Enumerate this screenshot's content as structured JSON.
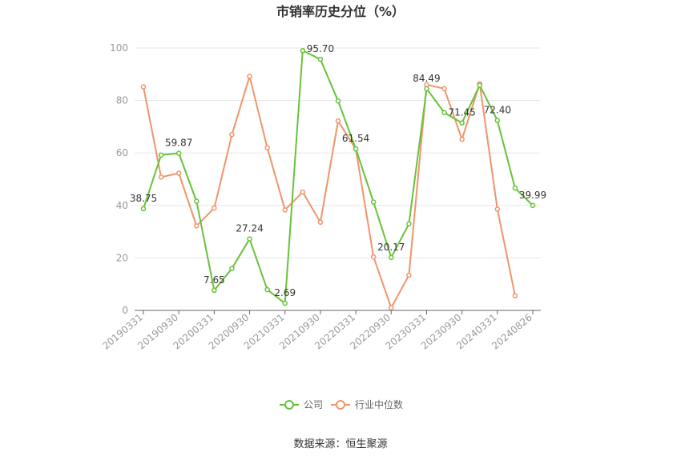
{
  "chart_data": {
    "type": "line",
    "title": "市销率历史分位（%）",
    "ylim": [
      0,
      100
    ],
    "y_ticks": [
      0,
      20,
      40,
      60,
      80,
      100
    ],
    "x": [
      "20190331",
      "20190630",
      "20190930",
      "20191231",
      "20200331",
      "20200630",
      "20200930",
      "20201231",
      "20210331",
      "20210630",
      "20210930",
      "20211231",
      "20220331",
      "20220630",
      "20220930",
      "20221231",
      "20230331",
      "20230630",
      "20230930",
      "20231231",
      "20240331",
      "20240630",
      "20240826"
    ],
    "x_tick_labels": [
      "20190331",
      "20190930",
      "20200331",
      "20200930",
      "20210331",
      "20210930",
      "20220331",
      "20220930",
      "20230331",
      "20230930",
      "20240331",
      "20240826"
    ],
    "x_tick_indices": [
      0,
      2,
      4,
      6,
      8,
      10,
      12,
      14,
      16,
      18,
      20,
      22
    ],
    "grid": true,
    "legend_position": "bottom",
    "series": [
      {
        "name": "公司",
        "color": "#67c23a",
        "values": [
          38.75,
          59.2,
          59.87,
          41.6,
          7.65,
          16.0,
          27.24,
          7.9,
          2.69,
          99.0,
          95.7,
          79.8,
          61.54,
          41.3,
          20.17,
          33.0,
          84.49,
          75.4,
          71.45,
          85.8,
          72.4,
          46.6,
          39.99
        ],
        "labels": {
          "0": "38.75",
          "2": "59.87",
          "4": "7.65",
          "6": "27.24",
          "8": "2.69",
          "10": "95.70",
          "12": "61.54",
          "14": "20.17",
          "16": "84.49",
          "18": "71.45",
          "20": "72.40",
          "22": "39.99"
        }
      },
      {
        "name": "行业中位数",
        "color": "#f0946a",
        "values": [
          85.2,
          50.8,
          52.3,
          32.2,
          39.0,
          67.0,
          89.2,
          62.0,
          38.3,
          45.1,
          33.6,
          72.2,
          61.5,
          20.4,
          1.0,
          13.4,
          86.0,
          84.5,
          65.2,
          86.4,
          38.6,
          5.6,
          null
        ]
      }
    ]
  },
  "footer": {
    "source": "数据来源：恒生聚源"
  }
}
